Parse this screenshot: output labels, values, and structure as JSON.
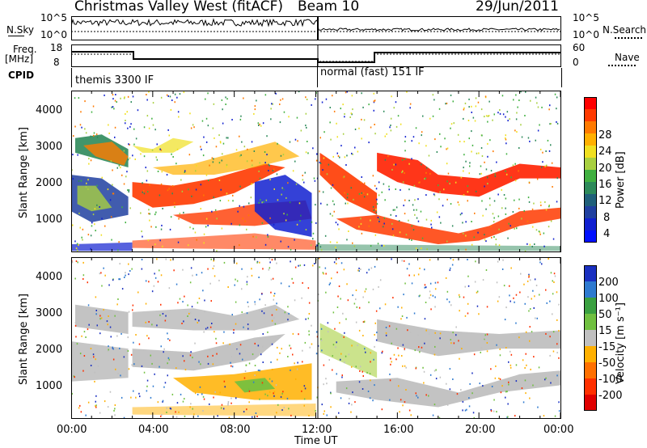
{
  "header": {
    "station": "Christmas Valley West (fitACF)",
    "beam": "Beam 10",
    "date": "29/Jun/2011"
  },
  "top_panels": {
    "nsky_label": "N.Sky",
    "nsky_ticks": [
      "10^5",
      "10^0"
    ],
    "nsearch_label": "N.Search",
    "nsearch_ticks": [
      "10^5",
      "10^0"
    ],
    "freq_label": "Freq.",
    "freq_unit": "[MHz]",
    "freq_ticks": [
      "18",
      "8"
    ],
    "nave_label": "Nave",
    "nave_ticks": [
      "60",
      "0"
    ],
    "cpid_label": "CPID",
    "cpid_modes": [
      "themis 3300 IF",
      "normal (fast) 151 IF"
    ]
  },
  "chart_data": [
    {
      "type": "heatmap",
      "title": "",
      "ylabel": "Slant Range [km]",
      "xlabel": "",
      "x_ticks": [
        "00:00",
        "04:00",
        "08:00",
        "12:00",
        "16:00",
        "20:00",
        "00:00"
      ],
      "y_ticks": [
        "1000",
        "2000",
        "3000",
        "4000"
      ],
      "ylim": [
        180,
        4600
      ],
      "colorbar": {
        "label": "Power [dB]",
        "ticks": [
          "28",
          "24",
          "20",
          "16",
          "12",
          "8",
          "4"
        ],
        "colors": [
          "#ff0000",
          "#ff3a00",
          "#ff7a00",
          "#ffb000",
          "#f0e020",
          "#a8d040",
          "#40b040",
          "#2d8a5a",
          "#20607a",
          "#2040a0",
          "#1020d0",
          "#0010ff"
        ]
      }
    },
    {
      "type": "heatmap",
      "title": "",
      "ylabel": "Slant Range [km]",
      "xlabel": "Time UT",
      "x_ticks": [
        "00:00",
        "04:00",
        "08:00",
        "12:00",
        "16:00",
        "20:00",
        "00:00"
      ],
      "y_ticks": [
        "1000",
        "2000",
        "3000",
        "4000"
      ],
      "ylim": [
        180,
        4600
      ],
      "colorbar": {
        "label": "Velocity [m s⁻¹]",
        "ticks": [
          "200",
          "100",
          "50",
          "15",
          "-15",
          "-50",
          "-100",
          "-200"
        ],
        "colors": [
          "#1a30c0",
          "#2e7ad0",
          "#3aa040",
          "#70c040",
          "#c0c0c0",
          "#ffb000",
          "#ff7000",
          "#ff3000",
          "#e00000"
        ]
      }
    }
  ]
}
